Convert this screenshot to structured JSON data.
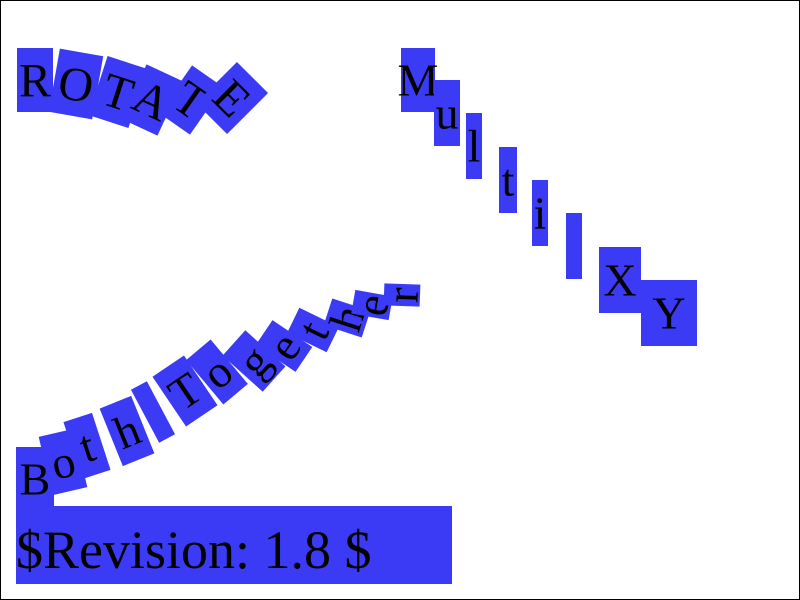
{
  "groups": {
    "rotate": [
      "R",
      "O",
      "T",
      "A",
      "T",
      "E"
    ],
    "multi": [
      "M",
      "u",
      "l",
      "t",
      "i",
      "",
      "X",
      "Y"
    ],
    "both": [
      "B",
      "o",
      "t",
      "h",
      "",
      "T",
      "o",
      "g",
      "e",
      "t",
      "h",
      "e",
      "r"
    ]
  },
  "revision": "$Revision: 1.8 $",
  "colors": {
    "highlight": "#3b3bf5",
    "text": "#000000",
    "border": "#000000",
    "background": "#ffffff"
  }
}
